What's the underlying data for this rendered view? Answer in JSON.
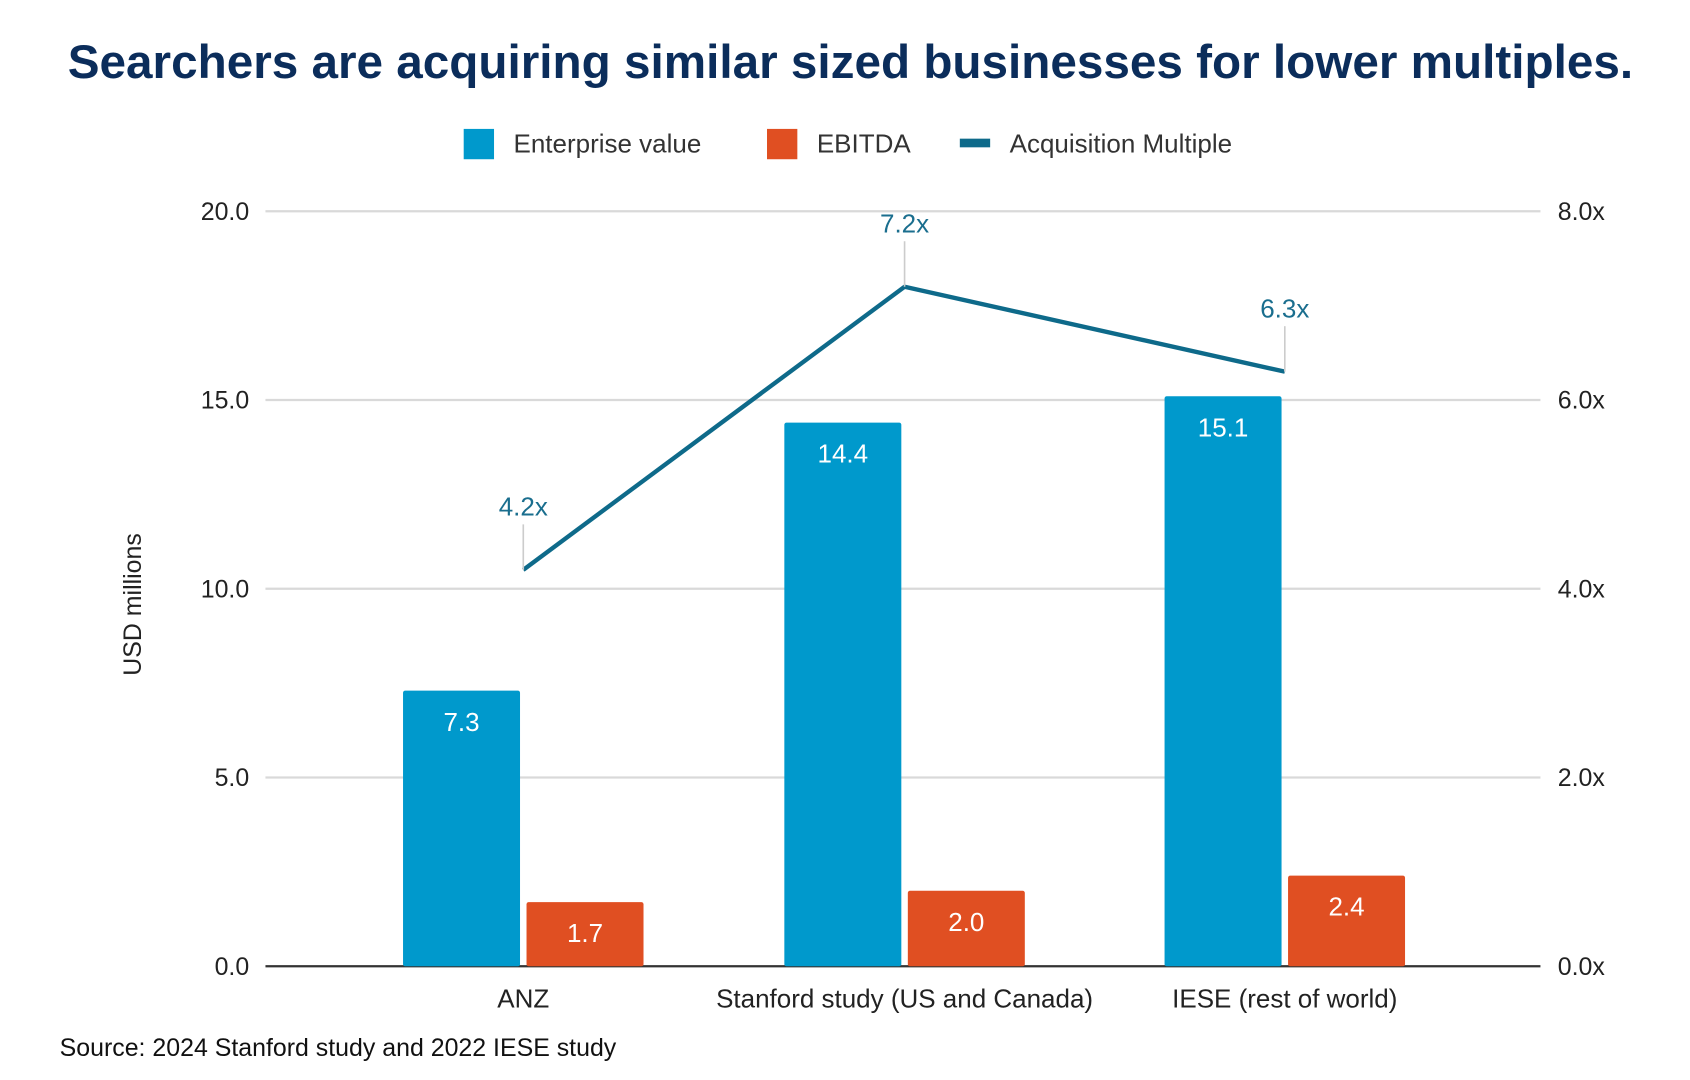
{
  "chart_data": {
    "type": "bar",
    "title": "Searchers are acquiring similar sized businesses for lower multiples.",
    "source": "Source: 2024 Stanford study and 2022 IESE study",
    "ylabel": "USD millions",
    "ylim": [
      0,
      20
    ],
    "y2lim": [
      0,
      8
    ],
    "yticks": [
      "0.0",
      "5.0",
      "10.0",
      "15.0",
      "20.0"
    ],
    "y2ticks": [
      "0.0x",
      "2.0x",
      "4.0x",
      "6.0x",
      "8.0x"
    ],
    "grid": true,
    "legend_placement": "top",
    "categories": [
      "ANZ",
      "Stanford study (US and Canada)",
      "IESE (rest of world)"
    ],
    "series": [
      {
        "name": "Enterprise value",
        "type": "bar",
        "axis": "left",
        "color": "#0099CC",
        "values": [
          7.3,
          14.4,
          15.1
        ],
        "labels": [
          "7.3",
          "14.4",
          "15.1"
        ]
      },
      {
        "name": "EBITDA",
        "type": "bar",
        "axis": "left",
        "color": "#E04F22",
        "values": [
          1.7,
          2.0,
          2.4
        ],
        "labels": [
          "1.7",
          "2.0",
          "2.4"
        ]
      },
      {
        "name": "Acquisition Multiple",
        "type": "line",
        "axis": "right",
        "color": "#0E6A8A",
        "values": [
          4.2,
          7.2,
          6.3
        ],
        "labels": [
          "4.2x",
          "7.2x",
          "6.3x"
        ]
      }
    ],
    "colors": {
      "title": "#0B2D5B",
      "grid": "#D9D9D9",
      "axis_text": "#222222"
    }
  }
}
